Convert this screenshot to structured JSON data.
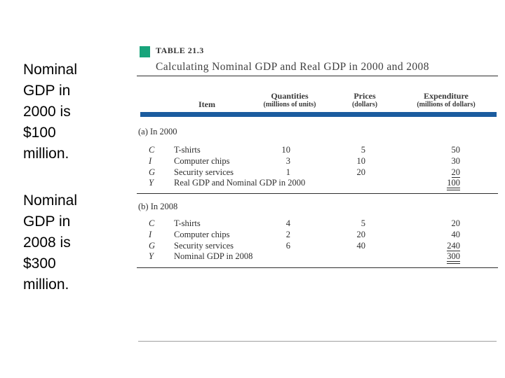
{
  "slide": {
    "notes": [
      {
        "text": "Nominal GDP in 2000 is $100 million."
      },
      {
        "text": "Nominal GDP in 2008 is $300 million."
      }
    ]
  },
  "table": {
    "tag": "TABLE 21.3",
    "title": "Calculating Nominal GDP and Real GDP in 2000 and 2008",
    "columns": {
      "item": "Item",
      "quantities": "Quantities",
      "quantities_sub": "(millions of units)",
      "prices": "Prices",
      "prices_sub": "(dollars)",
      "expenditure": "Expenditure",
      "expenditure_sub": "(millions of dollars)"
    },
    "sections": [
      {
        "label": "(a) In 2000",
        "rows": [
          {
            "symbol": "C",
            "item": "T-shirts",
            "quantity": "10",
            "price": "5",
            "expenditure": "50",
            "underline": "none"
          },
          {
            "symbol": "I",
            "item": "Computer chips",
            "quantity": "3",
            "price": "10",
            "expenditure": "30",
            "underline": "none"
          },
          {
            "symbol": "G",
            "item": "Security services",
            "quantity": "1",
            "price": "20",
            "expenditure": "20",
            "underline": "single"
          },
          {
            "symbol": "Y",
            "item": "Real GDP and Nominal GDP in 2000",
            "quantity": "",
            "price": "",
            "expenditure": "100",
            "underline": "double"
          }
        ]
      },
      {
        "label": "(b) In 2008",
        "rows": [
          {
            "symbol": "C",
            "item": "T-shirts",
            "quantity": "4",
            "price": "5",
            "expenditure": "20",
            "underline": "none"
          },
          {
            "symbol": "I",
            "item": "Computer chips",
            "quantity": "2",
            "price": "20",
            "expenditure": "40",
            "underline": "none"
          },
          {
            "symbol": "G",
            "item": "Security services",
            "quantity": "6",
            "price": "40",
            "expenditure": "240",
            "underline": "single"
          },
          {
            "symbol": "Y",
            "item": "Nominal GDP in 2008",
            "quantity": "",
            "price": "",
            "expenditure": "300",
            "underline": "double"
          }
        ]
      }
    ],
    "colors": {
      "accent_teal": "#18a47b",
      "rule_blue": "#1b5c9f",
      "text": "#2e2e2e",
      "bottom_rule_gray": "#a0a0a0"
    }
  }
}
